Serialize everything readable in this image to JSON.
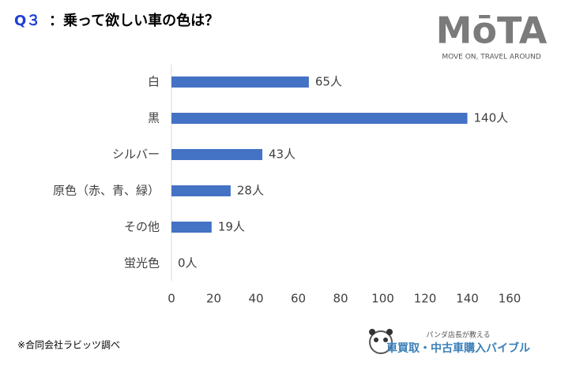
{
  "chart_data": {
    "type": "barh",
    "title_prefix": "Q３",
    "title": "：乗って欲しい車の色は？",
    "categories": [
      "白",
      "黒",
      "シルバー",
      "原色（赤、青、緑）",
      "その他",
      "蛍光色"
    ],
    "values": [
      65,
      140,
      43,
      28,
      19,
      0
    ],
    "value_labels": [
      "65人",
      "140人",
      "43人",
      "28人",
      "19人",
      "0人"
    ],
    "color": "#4472c4",
    "xlim": [
      0,
      160
    ],
    "xticks": [
      0,
      20,
      40,
      60,
      80,
      100,
      120,
      140,
      160
    ],
    "grid": false
  },
  "logo": {
    "name": "MōTA",
    "tagline": "MOVE ON, TRAVEL AROUND"
  },
  "footnote": "※合同会社ラビッツ調べ",
  "badge": {
    "subtitle": "パンダ店長が教える",
    "title": "車買取・中古車購入バイブル"
  }
}
